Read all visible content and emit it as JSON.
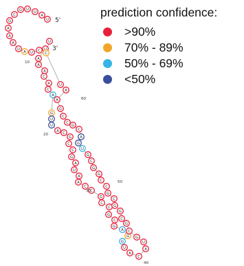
{
  "legend": {
    "title": "prediction confidence:",
    "items": [
      {
        "label": ">90%",
        "color": "#e8203a",
        "key": "high"
      },
      {
        "label": "70% - 89%",
        "color": "#f3a52a",
        "key": "mid"
      },
      {
        "label": "50% - 69%",
        "color": "#36b4e6",
        "key": "low"
      },
      {
        "label": "<50%",
        "color": "#3a4f9c",
        "key": "lowest"
      }
    ]
  },
  "structure": {
    "five_prime_label": "5'",
    "three_prime_label": "3'",
    "position_labels": [
      "10",
      "20",
      "30",
      "40",
      "50",
      "60"
    ],
    "nucleotides": [
      {
        "base": "U",
        "conf": "high"
      },
      {
        "base": "A",
        "conf": "high"
      },
      {
        "base": "U",
        "conf": "high"
      },
      {
        "base": "U",
        "conf": "high"
      },
      {
        "base": "G",
        "conf": "high"
      },
      {
        "base": "C",
        "conf": "high"
      },
      {
        "base": "G",
        "conf": "high"
      },
      {
        "base": "A",
        "conf": "high"
      },
      {
        "base": "A",
        "conf": "high"
      },
      {
        "base": "A",
        "conf": "high"
      },
      {
        "base": "U",
        "conf": "high"
      },
      {
        "base": "A",
        "conf": "mid"
      },
      {
        "base": "U",
        "conf": "high"
      },
      {
        "base": "C",
        "conf": "high"
      },
      {
        "base": "U",
        "conf": "high"
      },
      {
        "base": "A",
        "conf": "high"
      },
      {
        "base": "A",
        "conf": "high"
      },
      {
        "base": "A",
        "conf": "high"
      },
      {
        "base": "C",
        "conf": "high"
      },
      {
        "base": "A",
        "conf": "high"
      },
      {
        "base": "C",
        "conf": "high"
      },
      {
        "base": "A",
        "conf": "low"
      },
      {
        "base": "G",
        "conf": "mid"
      },
      {
        "base": "U",
        "conf": "lowest"
      },
      {
        "base": "U",
        "conf": "lowest"
      },
      {
        "base": "A",
        "conf": "high"
      },
      {
        "base": "C",
        "conf": "high"
      },
      {
        "base": "G",
        "conf": "high"
      },
      {
        "base": "C",
        "conf": "high"
      },
      {
        "base": "C",
        "conf": "high"
      },
      {
        "base": "G",
        "conf": "high"
      },
      {
        "base": "A",
        "conf": "high"
      },
      {
        "base": "U",
        "conf": "high"
      },
      {
        "base": "A",
        "conf": "high"
      },
      {
        "base": "A",
        "conf": "high"
      },
      {
        "base": "C",
        "conf": "high"
      },
      {
        "base": "C",
        "conf": "high"
      },
      {
        "base": "G",
        "conf": "high"
      },
      {
        "base": "C",
        "conf": "high"
      },
      {
        "base": "C",
        "conf": "high"
      },
      {
        "base": "G",
        "conf": "high"
      },
      {
        "base": "C",
        "conf": "high"
      },
      {
        "base": "G",
        "conf": "high"
      },
      {
        "base": "A",
        "conf": "low"
      },
      {
        "base": "G",
        "conf": "mid"
      },
      {
        "base": "G",
        "conf": "low"
      },
      {
        "base": "U",
        "conf": "high"
      },
      {
        "base": "A",
        "conf": "high"
      },
      {
        "base": "C",
        "conf": "high"
      },
      {
        "base": "A",
        "conf": "high"
      },
      {
        "base": "U",
        "conf": "high"
      },
      {
        "base": "G",
        "conf": "high"
      },
      {
        "base": "C",
        "conf": "high"
      },
      {
        "base": "G",
        "conf": "high"
      },
      {
        "base": "C",
        "conf": "high"
      },
      {
        "base": "G",
        "conf": "high"
      },
      {
        "base": "G",
        "conf": "high"
      },
      {
        "base": "C",
        "conf": "high"
      },
      {
        "base": "G",
        "conf": "high"
      },
      {
        "base": "C",
        "conf": "high"
      },
      {
        "base": "C",
        "conf": "high"
      },
      {
        "base": "G",
        "conf": "high"
      },
      {
        "base": "G",
        "conf": "high"
      },
      {
        "base": "C",
        "conf": "high"
      },
      {
        "base": "G",
        "conf": "high"
      },
      {
        "base": "U",
        "conf": "low"
      },
      {
        "base": "G",
        "conf": "lowest"
      },
      {
        "base": "A",
        "conf": "lowest"
      },
      {
        "base": "C",
        "conf": "high"
      },
      {
        "base": "G",
        "conf": "high"
      },
      {
        "base": "C",
        "conf": "high"
      },
      {
        "base": "C",
        "conf": "high"
      },
      {
        "base": "G",
        "conf": "high"
      },
      {
        "base": "A",
        "conf": "high"
      },
      {
        "base": "A",
        "conf": "high"
      },
      {
        "base": "U",
        "conf": "high"
      },
      {
        "base": "C",
        "conf": "mid"
      },
      {
        "base": "U",
        "conf": "high"
      }
    ]
  }
}
